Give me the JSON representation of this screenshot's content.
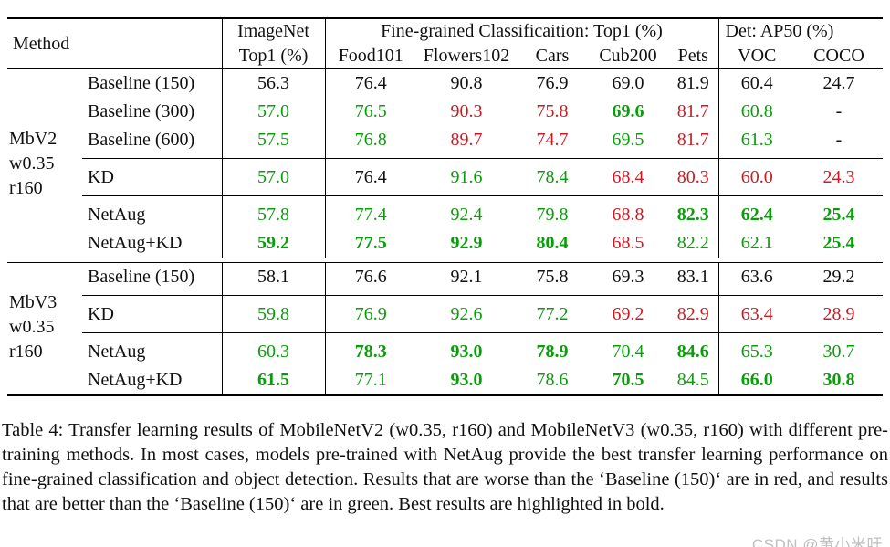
{
  "colors": {
    "good": "#0b9c0b",
    "bad": "#cc1a22",
    "ink": "#111111",
    "watermark": "#c0c0c0"
  },
  "table": {
    "header": {
      "method": "Method",
      "imagenet_line1": "ImageNet",
      "imagenet_line2": "Top1 (%)",
      "finegrained": "Fine-grained Classificaition: Top1 (%)",
      "det": "Det: AP50 (%)",
      "fg_cols": [
        "Food101",
        "Flowers102",
        "Cars",
        "Cub200",
        "Pets"
      ],
      "det_cols": [
        "VOC",
        "COCO"
      ]
    },
    "groups": [
      {
        "label_lines": [
          "MbV2",
          "w0.35",
          "r160"
        ],
        "rows": [
          {
            "method": "Baseline (150)",
            "rule_above": false,
            "cells": [
              {
                "v": "56.3",
                "c": "k",
                "b": false
              },
              {
                "v": "76.4",
                "c": "k",
                "b": false
              },
              {
                "v": "90.8",
                "c": "k",
                "b": false
              },
              {
                "v": "76.9",
                "c": "k",
                "b": false
              },
              {
                "v": "69.0",
                "c": "k",
                "b": false
              },
              {
                "v": "81.9",
                "c": "k",
                "b": false
              },
              {
                "v": "60.4",
                "c": "k",
                "b": false
              },
              {
                "v": "24.7",
                "c": "k",
                "b": false
              }
            ]
          },
          {
            "method": "Baseline (300)",
            "rule_above": false,
            "cells": [
              {
                "v": "57.0",
                "c": "g",
                "b": false
              },
              {
                "v": "76.5",
                "c": "g",
                "b": false
              },
              {
                "v": "90.3",
                "c": "r",
                "b": false
              },
              {
                "v": "75.8",
                "c": "r",
                "b": false
              },
              {
                "v": "69.6",
                "c": "g",
                "b": true
              },
              {
                "v": "81.7",
                "c": "r",
                "b": false
              },
              {
                "v": "60.8",
                "c": "g",
                "b": false
              },
              {
                "v": "-",
                "c": "k",
                "b": false
              }
            ]
          },
          {
            "method": "Baseline (600)",
            "rule_above": false,
            "cells": [
              {
                "v": "57.5",
                "c": "g",
                "b": false
              },
              {
                "v": "76.8",
                "c": "g",
                "b": false
              },
              {
                "v": "89.7",
                "c": "r",
                "b": false
              },
              {
                "v": "74.7",
                "c": "r",
                "b": false
              },
              {
                "v": "69.5",
                "c": "g",
                "b": false
              },
              {
                "v": "81.7",
                "c": "r",
                "b": false
              },
              {
                "v": "61.3",
                "c": "g",
                "b": false
              },
              {
                "v": "-",
                "c": "k",
                "b": false
              }
            ]
          },
          {
            "method": "KD",
            "rule_above": true,
            "cells": [
              {
                "v": "57.0",
                "c": "g",
                "b": false
              },
              {
                "v": "76.4",
                "c": "k",
                "b": false
              },
              {
                "v": "91.6",
                "c": "g",
                "b": false
              },
              {
                "v": "78.4",
                "c": "g",
                "b": false
              },
              {
                "v": "68.4",
                "c": "r",
                "b": false
              },
              {
                "v": "80.3",
                "c": "r",
                "b": false
              },
              {
                "v": "60.0",
                "c": "r",
                "b": false
              },
              {
                "v": "24.3",
                "c": "r",
                "b": false
              }
            ]
          },
          {
            "method": "NetAug",
            "rule_above": true,
            "cells": [
              {
                "v": "57.8",
                "c": "g",
                "b": false
              },
              {
                "v": "77.4",
                "c": "g",
                "b": false
              },
              {
                "v": "92.4",
                "c": "g",
                "b": false
              },
              {
                "v": "79.8",
                "c": "g",
                "b": false
              },
              {
                "v": "68.8",
                "c": "r",
                "b": false
              },
              {
                "v": "82.3",
                "c": "g",
                "b": true
              },
              {
                "v": "62.4",
                "c": "g",
                "b": true
              },
              {
                "v": "25.4",
                "c": "g",
                "b": true
              }
            ]
          },
          {
            "method": "NetAug+KD",
            "rule_above": false,
            "cells": [
              {
                "v": "59.2",
                "c": "g",
                "b": true
              },
              {
                "v": "77.5",
                "c": "g",
                "b": true
              },
              {
                "v": "92.9",
                "c": "g",
                "b": true
              },
              {
                "v": "80.4",
                "c": "g",
                "b": true
              },
              {
                "v": "68.5",
                "c": "r",
                "b": false
              },
              {
                "v": "82.2",
                "c": "g",
                "b": false
              },
              {
                "v": "62.1",
                "c": "g",
                "b": false
              },
              {
                "v": "25.4",
                "c": "g",
                "b": true
              }
            ]
          }
        ]
      },
      {
        "label_lines": [
          "MbV3",
          "w0.35",
          "r160"
        ],
        "rows": [
          {
            "method": "Baseline (150)",
            "rule_above": false,
            "cells": [
              {
                "v": "58.1",
                "c": "k",
                "b": false
              },
              {
                "v": "76.6",
                "c": "k",
                "b": false
              },
              {
                "v": "92.1",
                "c": "k",
                "b": false
              },
              {
                "v": "75.8",
                "c": "k",
                "b": false
              },
              {
                "v": "69.3",
                "c": "k",
                "b": false
              },
              {
                "v": "83.1",
                "c": "k",
                "b": false
              },
              {
                "v": "63.6",
                "c": "k",
                "b": false
              },
              {
                "v": "29.2",
                "c": "k",
                "b": false
              }
            ]
          },
          {
            "method": "KD",
            "rule_above": true,
            "cells": [
              {
                "v": "59.8",
                "c": "g",
                "b": false
              },
              {
                "v": "76.9",
                "c": "g",
                "b": false
              },
              {
                "v": "92.6",
                "c": "g",
                "b": false
              },
              {
                "v": "77.2",
                "c": "g",
                "b": false
              },
              {
                "v": "69.2",
                "c": "r",
                "b": false
              },
              {
                "v": "82.9",
                "c": "r",
                "b": false
              },
              {
                "v": "63.4",
                "c": "r",
                "b": false
              },
              {
                "v": "28.9",
                "c": "r",
                "b": false
              }
            ]
          },
          {
            "method": "NetAug",
            "rule_above": true,
            "cells": [
              {
                "v": "60.3",
                "c": "g",
                "b": false
              },
              {
                "v": "78.3",
                "c": "g",
                "b": true
              },
              {
                "v": "93.0",
                "c": "g",
                "b": true
              },
              {
                "v": "78.9",
                "c": "g",
                "b": true
              },
              {
                "v": "70.4",
                "c": "g",
                "b": false
              },
              {
                "v": "84.6",
                "c": "g",
                "b": true
              },
              {
                "v": "65.3",
                "c": "g",
                "b": false
              },
              {
                "v": "30.7",
                "c": "g",
                "b": false
              }
            ]
          },
          {
            "method": "NetAug+KD",
            "rule_above": false,
            "cells": [
              {
                "v": "61.5",
                "c": "g",
                "b": true
              },
              {
                "v": "77.1",
                "c": "g",
                "b": false
              },
              {
                "v": "93.0",
                "c": "g",
                "b": true
              },
              {
                "v": "78.6",
                "c": "g",
                "b": false
              },
              {
                "v": "70.5",
                "c": "g",
                "b": true
              },
              {
                "v": "84.5",
                "c": "g",
                "b": false
              },
              {
                "v": "66.0",
                "c": "g",
                "b": true
              },
              {
                "v": "30.8",
                "c": "g",
                "b": true
              }
            ]
          }
        ]
      }
    ]
  },
  "caption": "Table 4:  Transfer learning results of MobileNetV2 (w0.35, r160) and MobileNetV3 (w0.35, r160) with different pre-training methods. In most cases, models pre-trained with NetAug provide the best transfer learning performance on fine-grained classification and object detection.  Results that are worse than the ‘Baseline (150)‘ are in red, and results that are better than the ‘Baseline (150)‘ are in green. Best results are highlighted in bold.",
  "watermark": "CSDN @黄小米吁"
}
